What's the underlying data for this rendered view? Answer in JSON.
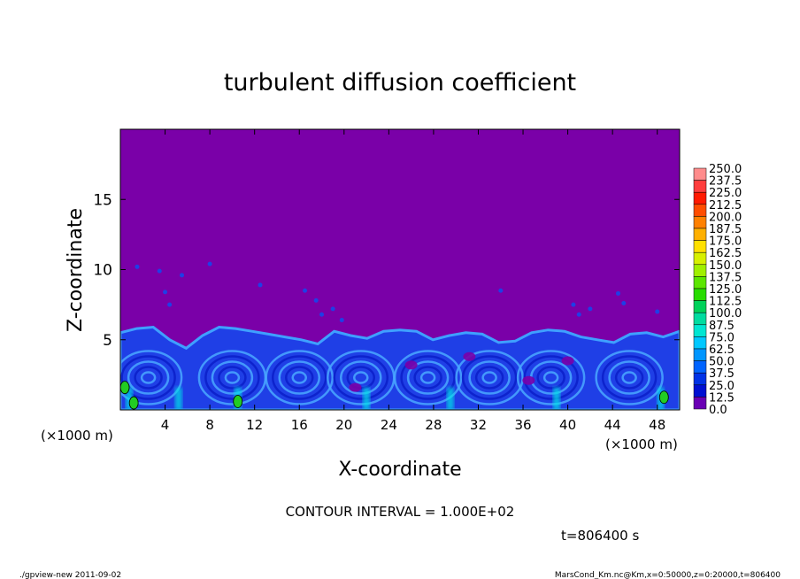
{
  "chart_data": {
    "type": "heatmap",
    "title": "turbulent diffusion coefficient",
    "xlabel": "X-coordinate",
    "ylabel": "Z-coordinate",
    "x_unit_left": "(×1000 m)",
    "x_unit_right": "(×1000 m)",
    "xlim": [
      0,
      50
    ],
    "ylim": [
      0,
      20
    ],
    "xticks": [
      "4",
      "8",
      "12",
      "16",
      "20",
      "24",
      "28",
      "32",
      "36",
      "40",
      "44",
      "48"
    ],
    "xtick_values": [
      4,
      8,
      12,
      16,
      20,
      24,
      28,
      32,
      36,
      40,
      44,
      48
    ],
    "yticks": [
      "5",
      "10",
      "15"
    ],
    "ytick_values": [
      5,
      10,
      15
    ],
    "colorbar_levels": [
      "250.0",
      "237.5",
      "225.0",
      "212.5",
      "200.0",
      "187.5",
      "175.0",
      "162.5",
      "150.0",
      "137.5",
      "125.0",
      "112.5",
      "100.0",
      "87.5",
      "75.0",
      "62.5",
      "50.0",
      "37.5",
      "25.0",
      "12.5",
      "0.0"
    ],
    "colorbar_colors": [
      "#ff8c8c",
      "#ff3d3d",
      "#ff1a00",
      "#ff4d00",
      "#ff8000",
      "#ffb000",
      "#ffe000",
      "#d7f000",
      "#a0f000",
      "#5ce600",
      "#28dc00",
      "#00d25a",
      "#00dca0",
      "#00e6d2",
      "#00c8ff",
      "#0096ff",
      "#0064ff",
      "#0032e6",
      "#0010d2",
      "#6a00b4"
    ],
    "background_color": "#7a00a8",
    "contour_interval_text": "CONTOUR INTERVAL = 1.000E+02",
    "time_text": "t=806400 s",
    "turbulent_layer": {
      "top_height_z": [
        5.5,
        5.8,
        5.9,
        5.0,
        4.4,
        5.3,
        5.9,
        5.8,
        5.6,
        5.4,
        5.2,
        5.0,
        4.7,
        5.6,
        5.3,
        5.1,
        5.6,
        5.7,
        5.6,
        5.0,
        5.3,
        5.5,
        5.4,
        4.8,
        4.9,
        5.5,
        5.7,
        5.6,
        5.2,
        5.0,
        4.8,
        5.4,
        5.5,
        5.2,
        5.6
      ],
      "eddy_centers_x": [
        2.5,
        10,
        16,
        21.5,
        27.5,
        33,
        38.5,
        45.5
      ]
    }
  },
  "footer": {
    "left": "./gpview-new  2011-09-02",
    "right": "MarsCond_Km.nc@Km,x=0:50000,z=0:20000,t=806400"
  }
}
